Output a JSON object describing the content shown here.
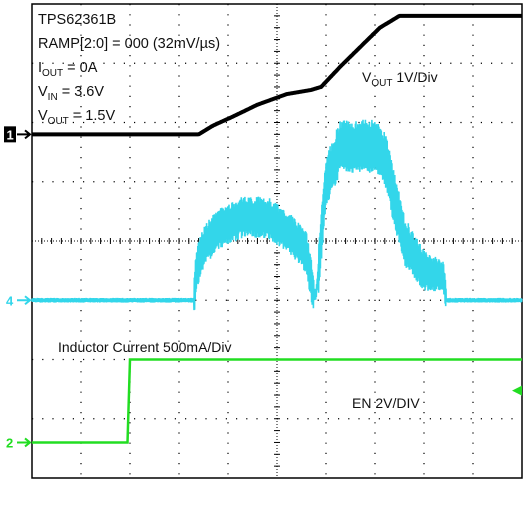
{
  "chart_data": {
    "type": "line",
    "title": "",
    "settings": [
      {
        "text": "TPS62361B"
      },
      {
        "text": "RAMP[2:0] = 000 (32mV/µs)"
      },
      {
        "main": "I",
        "sub": "OUT",
        "rest": " = 0A"
      },
      {
        "main": "V",
        "sub": "IN",
        "rest": " = 3.6V"
      },
      {
        "main": "V",
        "sub": "OUT",
        "rest": " = 1.5V"
      }
    ],
    "grid": {
      "x_divisions": 10,
      "y_divisions": 8,
      "on": true
    },
    "channels": [
      {
        "id": "vout",
        "marker": "1",
        "label_main": "V",
        "label_sub": "OUT",
        "label_rest": " 1V/Div",
        "color": "#000000",
        "baseline_div": 2.2,
        "points": [
          [
            0,
            0
          ],
          [
            3.4,
            0
          ],
          [
            3.7,
            0.15
          ],
          [
            4.1,
            0.3
          ],
          [
            4.6,
            0.5
          ],
          [
            5.2,
            0.68
          ],
          [
            5.7,
            0.75
          ],
          [
            5.9,
            0.8
          ],
          [
            6.3,
            1.15
          ],
          [
            7.1,
            1.8
          ],
          [
            7.5,
            2.0
          ],
          [
            10,
            2.0
          ]
        ]
      },
      {
        "id": "il",
        "marker": "4",
        "label": "Inductor Current 500mA/Div",
        "color": "#33d6ea",
        "baseline_div": 5.0,
        "points": [
          [
            0,
            0
          ],
          [
            3.3,
            0
          ],
          [
            3.35,
            0.5
          ],
          [
            3.5,
            0.9
          ],
          [
            3.8,
            1.2
          ],
          [
            4.3,
            1.4
          ],
          [
            4.8,
            1.4
          ],
          [
            5.3,
            1.1
          ],
          [
            5.6,
            0.8
          ],
          [
            5.75,
            0.1
          ],
          [
            5.8,
            0.1
          ],
          [
            6.0,
            2.0
          ],
          [
            6.3,
            2.6
          ],
          [
            7.0,
            2.6
          ],
          [
            7.2,
            2.4
          ],
          [
            7.6,
            1.0
          ],
          [
            8.0,
            0.5
          ],
          [
            8.4,
            0.4
          ],
          [
            8.45,
            0
          ],
          [
            10,
            0
          ]
        ]
      },
      {
        "id": "en",
        "marker": "2",
        "label": "EN 2V/DIV",
        "color": "#22dd22",
        "baseline_div": 8.0,
        "points": [
          [
            0,
            0
          ],
          [
            1.95,
            0
          ],
          [
            2.0,
            1.0
          ],
          [
            10,
            1.0
          ]
        ]
      }
    ],
    "trigger_marker": "◀"
  }
}
